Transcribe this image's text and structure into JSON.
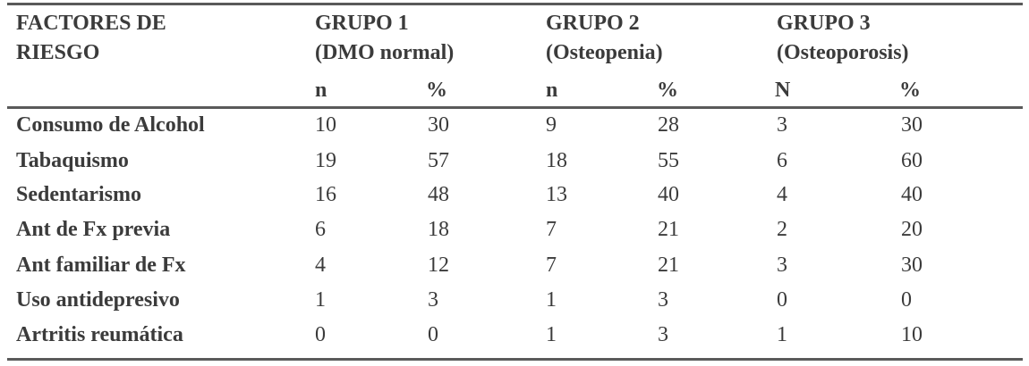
{
  "header": {
    "factor_line1": "FACTORES DE",
    "factor_line2": "RIESGO",
    "groups": [
      {
        "title": "GRUPO 1",
        "subtitle": "(DMO normal)",
        "n_label": "n",
        "pct_label": "%"
      },
      {
        "title": "GRUPO 2",
        "subtitle": "(Osteopenia)",
        "n_label": "n",
        "pct_label": "%"
      },
      {
        "title": "GRUPO 3",
        "subtitle": "(Osteoporosis)",
        "n_label": "N",
        "pct_label": "%"
      }
    ]
  },
  "rows": [
    {
      "factor": "Consumo  de Alcohol",
      "values": [
        "10",
        "30",
        "9",
        "28",
        "3",
        "30"
      ]
    },
    {
      "factor": "Tabaquismo",
      "values": [
        "19",
        "57",
        "18",
        "55",
        "6",
        "60"
      ]
    },
    {
      "factor": "Sedentarismo",
      "values": [
        "16",
        "48",
        "13",
        "40",
        "4",
        "40"
      ]
    },
    {
      "factor": "Ant de Fx previa",
      "values": [
        "6",
        "18",
        "7",
        "21",
        "2",
        "20"
      ]
    },
    {
      "factor": "Ant familiar de Fx",
      "values": [
        "4",
        "12",
        "7",
        "21",
        "3",
        "30"
      ]
    },
    {
      "factor": "Uso antidepresivo",
      "values": [
        "1",
        "3",
        "1",
        "3",
        "0",
        "0"
      ]
    },
    {
      "factor": "Artritis reumática",
      "values": [
        "0",
        "0",
        "1",
        "3",
        "1",
        "10"
      ]
    }
  ]
}
